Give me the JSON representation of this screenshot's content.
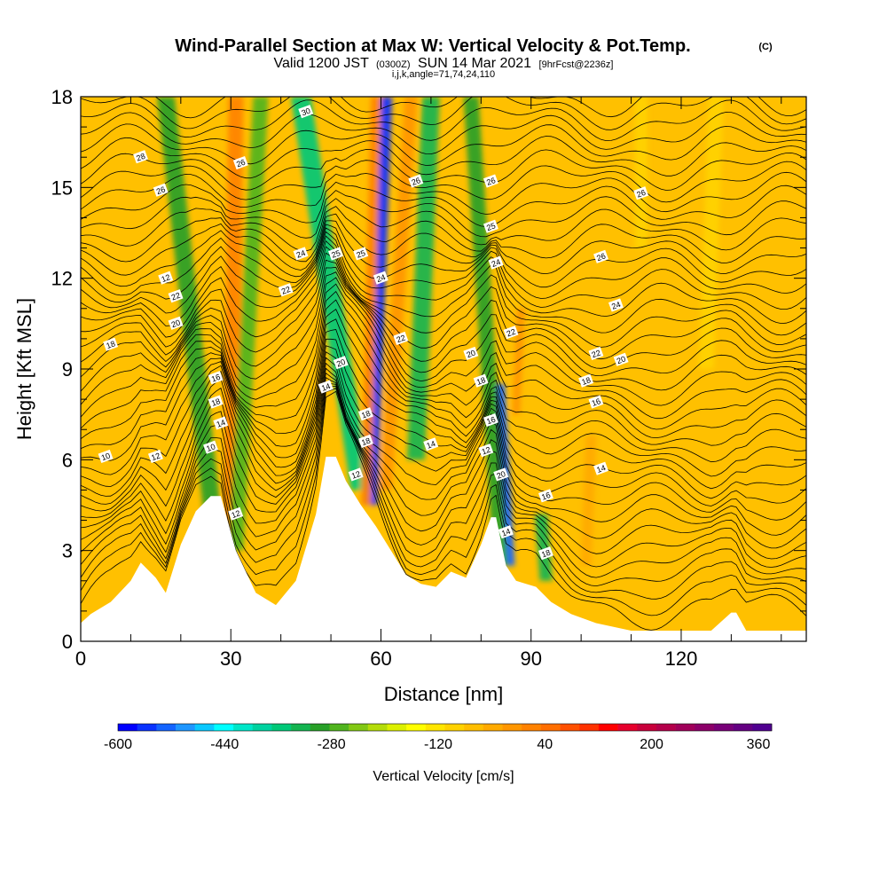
{
  "header": {
    "title": "Wind-Parallel Section at Max W: Vertical Velocity & Pot.Temp.",
    "copyright": "(C)",
    "valid_prefix": "Valid 1200 JST",
    "valid_utc": "(0300Z)",
    "valid_date": "SUN 14 Mar 2021",
    "forecast_info": "[9hrFcst@2236z]",
    "grid_info": "i,j,k,angle=71,74,24,110"
  },
  "chart_data": {
    "type": "heatmap",
    "xlabel": "Distance [nm]",
    "ylabel": "Height [Kft MSL]",
    "xlim": [
      0,
      145
    ],
    "ylim": [
      0,
      18
    ],
    "x_ticks": [
      "0",
      "30",
      "60",
      "90",
      "120"
    ],
    "x_tick_values": [
      0,
      30,
      60,
      90,
      120
    ],
    "y_ticks": [
      "0",
      "3",
      "6",
      "9",
      "12",
      "15",
      "18"
    ],
    "y_tick_values": [
      0,
      3,
      6,
      9,
      12,
      15,
      18
    ],
    "terrain": {
      "x": [
        0,
        2,
        6,
        10,
        12,
        15,
        17,
        20,
        23,
        26,
        28,
        31,
        35,
        39,
        43,
        47,
        49,
        51,
        53,
        56,
        59,
        62,
        65,
        68,
        71,
        74,
        77,
        80,
        82,
        83,
        85,
        87,
        89,
        91,
        94,
        98,
        103,
        110,
        118,
        126,
        130,
        131,
        133,
        138,
        145
      ],
      "y": [
        0.6,
        0.9,
        1.3,
        2.0,
        2.6,
        2.1,
        1.6,
        3.2,
        4.3,
        4.8,
        4.8,
        3.0,
        1.6,
        1.2,
        2.0,
        4.2,
        6.1,
        6.1,
        5.3,
        4.5,
        3.8,
        3.0,
        2.2,
        1.9,
        1.8,
        2.3,
        2.1,
        3.2,
        4.1,
        4.1,
        2.5,
        2.0,
        1.9,
        1.8,
        1.3,
        0.9,
        0.6,
        0.35,
        0.35,
        0.35,
        0.95,
        0.95,
        0.35,
        0.35,
        0.35
      ]
    },
    "colorbar": {
      "label": "Vertical Velocity [cm/s]",
      "tick_labels": [
        "-600",
        "-440",
        "-280",
        "-120",
        "40",
        "200",
        "360"
      ],
      "tick_values": [
        -600,
        -440,
        -280,
        -120,
        40,
        200,
        360
      ],
      "min": -600,
      "max": 380,
      "step": 40,
      "colors": [
        "#0000ff",
        "#0a32ff",
        "#1464ff",
        "#1e96ff",
        "#0ac8ff",
        "#00ffff",
        "#00e6c8",
        "#00d2a0",
        "#00c878",
        "#14b450",
        "#28a028",
        "#50b41e",
        "#82c814",
        "#b4dc0a",
        "#dcf000",
        "#ffff00",
        "#ffe600",
        "#ffd200",
        "#ffbe00",
        "#ffaa00",
        "#ff9600",
        "#ff8200",
        "#ff6e00",
        "#ff5000",
        "#ff3200",
        "#ff0000",
        "#e6002d",
        "#c8003c",
        "#b4004b",
        "#a0005a",
        "#8c0069",
        "#780078",
        "#640082",
        "#500090"
      ]
    },
    "background_color": "#ffc000",
    "velocity_bands": [
      {
        "x_top": 17,
        "x_bottom": 27,
        "top": 18,
        "bottom": 3.2,
        "width": 3.5,
        "value": -200
      },
      {
        "x_top": 31,
        "x_bottom": 30,
        "top": 18,
        "bottom": 3.0,
        "width": 3.0,
        "value": 240
      },
      {
        "x_top": 36,
        "x_bottom": 31,
        "top": 18,
        "bottom": 3.0,
        "width": 3.0,
        "value": -160
      },
      {
        "x_top": 44,
        "x_bottom": 56,
        "top": 18,
        "bottom": 5.0,
        "width": 4.0,
        "value": -280
      },
      {
        "x_top": 61,
        "x_bottom": 58,
        "top": 18,
        "bottom": 4.5,
        "width": 2.5,
        "value": -560
      },
      {
        "x_top": 59,
        "x_bottom": 57,
        "top": 18,
        "bottom": 4.5,
        "width": 2.0,
        "value": 240
      },
      {
        "x_top": 66,
        "x_bottom": 61,
        "top": 18,
        "bottom": 5.0,
        "width": 2.5,
        "value": 200
      },
      {
        "x_top": 70,
        "x_bottom": 67,
        "top": 18,
        "bottom": 6.0,
        "width": 3.5,
        "value": -240
      },
      {
        "x_top": 78,
        "x_bottom": 84,
        "top": 18,
        "bottom": 2.5,
        "width": 3.0,
        "value": -200
      },
      {
        "x_top": 84,
        "x_bottom": 86,
        "top": 8.5,
        "bottom": 2.5,
        "width": 1.5,
        "value": -520
      },
      {
        "x_top": 88,
        "x_bottom": 87,
        "top": 11.0,
        "bottom": 7.5,
        "width": 1.6,
        "value": 200
      },
      {
        "x_top": 92,
        "x_bottom": 93,
        "top": 4.2,
        "bottom": 2.0,
        "width": 2.5,
        "value": -240
      },
      {
        "x_top": 102,
        "x_bottom": 101,
        "top": 6.8,
        "bottom": 2.5,
        "width": 2.2,
        "value": 160
      },
      {
        "x_top": 127,
        "x_bottom": 125,
        "top": 18,
        "bottom": 9.0,
        "width": 3.0,
        "value": 80
      },
      {
        "x_top": 112,
        "x_bottom": 112,
        "top": 18,
        "bottom": 13.0,
        "width": 2.5,
        "value": 80
      }
    ],
    "contour_labels": [
      {
        "x": 12,
        "y": 16.0,
        "text": "28"
      },
      {
        "x": 16,
        "y": 14.9,
        "text": "26"
      },
      {
        "x": 17,
        "y": 12.0,
        "text": "12"
      },
      {
        "x": 19,
        "y": 11.4,
        "text": "22"
      },
      {
        "x": 19,
        "y": 10.5,
        "text": "20"
      },
      {
        "x": 6,
        "y": 9.8,
        "text": "18"
      },
      {
        "x": 5,
        "y": 6.1,
        "text": "10"
      },
      {
        "x": 15,
        "y": 6.1,
        "text": "12"
      },
      {
        "x": 27,
        "y": 8.7,
        "text": "16"
      },
      {
        "x": 27,
        "y": 7.9,
        "text": "18"
      },
      {
        "x": 28,
        "y": 7.2,
        "text": "14"
      },
      {
        "x": 26,
        "y": 6.4,
        "text": "10"
      },
      {
        "x": 31,
        "y": 4.2,
        "text": "12"
      },
      {
        "x": 32,
        "y": 15.8,
        "text": "26"
      },
      {
        "x": 45,
        "y": 17.5,
        "text": "30"
      },
      {
        "x": 44,
        "y": 12.8,
        "text": "24"
      },
      {
        "x": 41,
        "y": 11.6,
        "text": "22"
      },
      {
        "x": 51,
        "y": 12.8,
        "text": "25"
      },
      {
        "x": 56,
        "y": 12.8,
        "text": "25"
      },
      {
        "x": 60,
        "y": 12.0,
        "text": "24"
      },
      {
        "x": 64,
        "y": 10.0,
        "text": "22"
      },
      {
        "x": 52,
        "y": 9.2,
        "text": "20"
      },
      {
        "x": 49,
        "y": 8.4,
        "text": "14"
      },
      {
        "x": 57,
        "y": 7.5,
        "text": "18"
      },
      {
        "x": 57,
        "y": 6.6,
        "text": "18"
      },
      {
        "x": 55,
        "y": 5.5,
        "text": "12"
      },
      {
        "x": 70,
        "y": 6.5,
        "text": "14"
      },
      {
        "x": 67,
        "y": 15.2,
        "text": "26"
      },
      {
        "x": 82,
        "y": 15.2,
        "text": "26"
      },
      {
        "x": 82,
        "y": 13.7,
        "text": "25"
      },
      {
        "x": 83,
        "y": 12.5,
        "text": "24"
      },
      {
        "x": 78,
        "y": 9.5,
        "text": "20"
      },
      {
        "x": 80,
        "y": 8.6,
        "text": "18"
      },
      {
        "x": 82,
        "y": 7.3,
        "text": "16"
      },
      {
        "x": 81,
        "y": 6.3,
        "text": "12"
      },
      {
        "x": 84,
        "y": 5.5,
        "text": "20"
      },
      {
        "x": 85,
        "y": 3.6,
        "text": "14"
      },
      {
        "x": 86,
        "y": 10.2,
        "text": "22"
      },
      {
        "x": 93,
        "y": 2.9,
        "text": "18"
      },
      {
        "x": 93,
        "y": 4.8,
        "text": "16"
      },
      {
        "x": 112,
        "y": 14.8,
        "text": "26"
      },
      {
        "x": 104,
        "y": 12.7,
        "text": "26"
      },
      {
        "x": 107,
        "y": 11.1,
        "text": "24"
      },
      {
        "x": 103,
        "y": 9.5,
        "text": "22"
      },
      {
        "x": 108,
        "y": 9.3,
        "text": "20"
      },
      {
        "x": 101,
        "y": 8.6,
        "text": "18"
      },
      {
        "x": 103,
        "y": 7.9,
        "text": "16"
      },
      {
        "x": 104,
        "y": 5.7,
        "text": "14"
      }
    ]
  }
}
